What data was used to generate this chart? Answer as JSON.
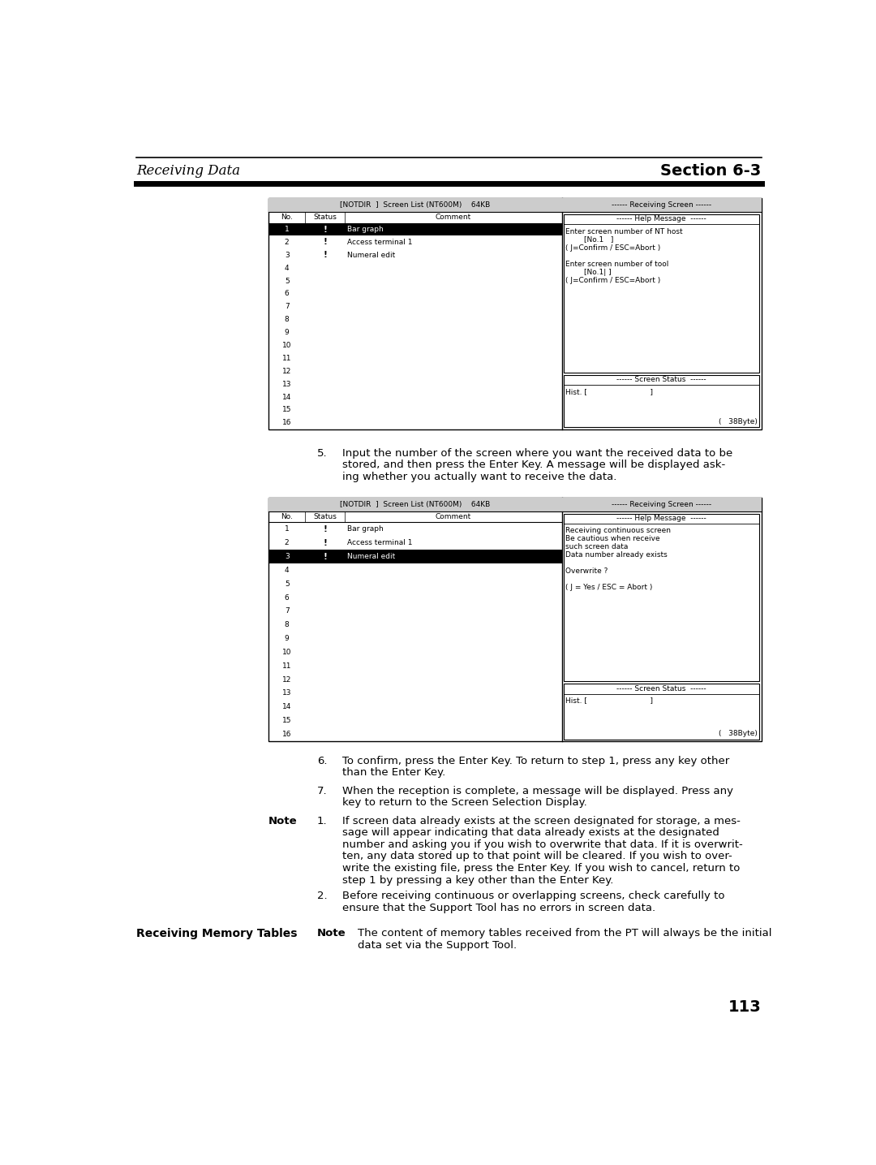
{
  "page_bg": "#ffffff",
  "header_title_left": "Receiving Data",
  "header_title_right": "Section 6-3",
  "diagram1_title": "[NOTDIR  ]  Screen List (NT600M)    64KB",
  "diagram1_rows": [
    [
      "1",
      "!",
      "Bar graph",
      true
    ],
    [
      "2",
      "!",
      "Access terminal 1",
      false
    ],
    [
      "3",
      "!",
      "Numeral edit",
      false
    ],
    [
      "4",
      "",
      "",
      false
    ],
    [
      "5",
      "",
      "",
      false
    ],
    [
      "6",
      "",
      "",
      false
    ],
    [
      "7",
      "",
      "",
      false
    ],
    [
      "8",
      "",
      "",
      false
    ],
    [
      "9",
      "",
      "",
      false
    ],
    [
      "10",
      "",
      "",
      false
    ],
    [
      "11",
      "",
      "",
      false
    ],
    [
      "12",
      "",
      "",
      false
    ],
    [
      "13",
      "",
      "",
      false
    ],
    [
      "14",
      "",
      "",
      false
    ],
    [
      "15",
      "",
      "",
      false
    ],
    [
      "16",
      "",
      "",
      false
    ]
  ],
  "diagram1_right_top": "------ Receiving Screen ------",
  "diagram1_help_title": "------ Help Message  ------",
  "diagram1_help_content": [
    "Enter screen number of NT host",
    "        [No.1   ]",
    "( J=Confirm / ESC=Abort )",
    "",
    "Enter screen number of tool",
    "        [No.1| ]",
    "( J=Confirm / ESC=Abort )"
  ],
  "diagram1_stat_title": "------ Screen Status  ------",
  "diagram1_stat_line1": "Hist. [                           ]",
  "diagram1_stat_line2": "(   38Byte)",
  "step5_lines": [
    "Input the number of the screen where you want the received data to be",
    "stored, and then press the Enter Key. A message will be displayed ask-",
    "ing whether you actually want to receive the data."
  ],
  "diagram2_title": "[NOTDIR  ]  Screen List (NT600M)    64KB",
  "diagram2_rows": [
    [
      "1",
      "!",
      "Bar graph",
      false
    ],
    [
      "2",
      "!",
      "Access terminal 1",
      false
    ],
    [
      "3",
      "!",
      "Numeral edit",
      true
    ],
    [
      "4",
      "",
      "",
      false
    ],
    [
      "5",
      "",
      "",
      false
    ],
    [
      "6",
      "",
      "",
      false
    ],
    [
      "7",
      "",
      "",
      false
    ],
    [
      "8",
      "",
      "",
      false
    ],
    [
      "9",
      "",
      "",
      false
    ],
    [
      "10",
      "",
      "",
      false
    ],
    [
      "11",
      "",
      "",
      false
    ],
    [
      "12",
      "",
      "",
      false
    ],
    [
      "13",
      "",
      "",
      false
    ],
    [
      "14",
      "",
      "",
      false
    ],
    [
      "15",
      "",
      "",
      false
    ],
    [
      "16",
      "",
      "",
      false
    ]
  ],
  "diagram2_right_top": "------ Receiving Screen ------",
  "diagram2_help_title": "------ Help Message  ------",
  "diagram2_help_content": [
    "Receiving continuous screen",
    "Be cautious when receive",
    "such screen data",
    "Data number already exists",
    "",
    "Overwrite ?",
    "",
    "( J = Yes / ESC = Abort )"
  ],
  "diagram2_stat_title": "------ Screen Status  ------",
  "diagram2_stat_line1": "Hist. [                           ]",
  "diagram2_stat_line2": "(   38Byte)",
  "step6_lines": [
    "To confirm, press the Enter Key. To return to step 1, press any key other",
    "than the Enter Key."
  ],
  "step7_lines": [
    "When the reception is complete, a message will be displayed. Press any",
    "key to return to the Screen Selection Display."
  ],
  "note1_lines": [
    "If screen data already exists at the screen designated for storage, a mes-",
    "sage will appear indicating that data already exists at the designated",
    "number and asking you if you wish to overwrite that data. If it is overwrit-",
    "ten, any data stored up to that point will be cleared. If you wish to over-",
    "write the existing file, press the Enter Key. If you wish to cancel, return to",
    "step 1 by pressing a key other than the Enter Key."
  ],
  "note2_lines": [
    "Before receiving continuous or overlapping screens, check carefully to",
    "ensure that the Support Tool has no errors in screen data."
  ],
  "section_title": "Receiving Memory Tables",
  "note3_lines": [
    "The content of memory tables received from the PT will always be the initial",
    "data set via the Support Tool."
  ],
  "page_number": "113"
}
